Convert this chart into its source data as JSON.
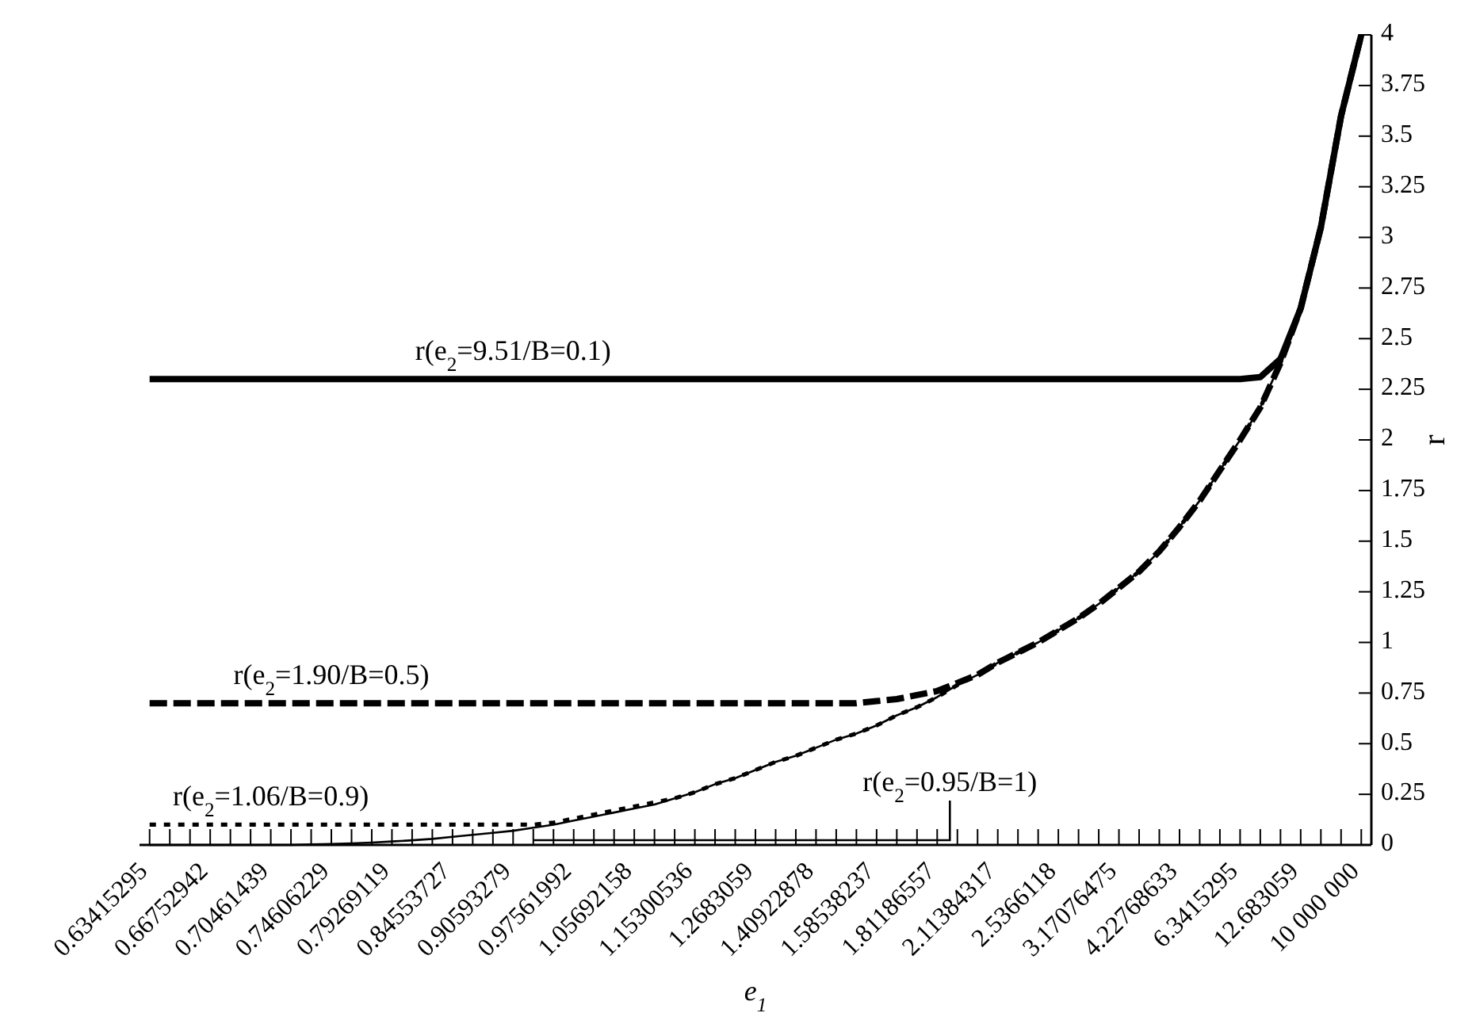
{
  "chart_data": {
    "type": "line",
    "xlabel": "e$_{1}$",
    "ylabel": "r",
    "categories": [
      "0.63415295",
      null,
      null,
      "0.66752942",
      null,
      null,
      "0.70461439",
      null,
      null,
      "0.74606229",
      null,
      null,
      "0.79269119",
      null,
      null,
      "0.84553727",
      null,
      null,
      "0.90593279",
      null,
      null,
      "0.97561992",
      null,
      null,
      "1.05692158",
      null,
      null,
      "1.15300536",
      null,
      null,
      "1.2683059",
      null,
      null,
      "1.40922878",
      null,
      null,
      "1.58538237",
      null,
      null,
      "1.81186557",
      null,
      null,
      "2.11384317",
      null,
      null,
      "2.5366118",
      null,
      null,
      "3.17076475",
      null,
      null,
      "4.22768633",
      null,
      null,
      "6.3415295",
      null,
      null,
      "12.683059",
      null,
      null,
      "10 000 000"
    ],
    "series": [
      {
        "color": "#000000",
        "line_style": "solid",
        "values": [
          2.3,
          2.3,
          2.3,
          2.3,
          2.3,
          2.3,
          2.3,
          2.3,
          2.3,
          2.3,
          2.3,
          2.3,
          2.3,
          2.3,
          2.3,
          2.3,
          2.3,
          2.3,
          2.3,
          2.3,
          2.3,
          2.3,
          2.3,
          2.3,
          2.3,
          2.3,
          2.3,
          2.3,
          2.3,
          2.3,
          2.3,
          2.3,
          2.3,
          2.3,
          2.3,
          2.3,
          2.3,
          2.3,
          2.3,
          2.3,
          2.3,
          2.3,
          2.3,
          2.3,
          2.3,
          2.3,
          2.3,
          2.3,
          2.3,
          2.3,
          2.3,
          2.3,
          2.3,
          2.3,
          2.3,
          2.31,
          2.4,
          2.65,
          3.05,
          3.6,
          4.0
        ]
      },
      {
        "color": "#000000",
        "line_style": "dashed",
        "values": [
          0.7,
          0.7,
          0.7,
          0.7,
          0.7,
          0.7,
          0.7,
          0.7,
          0.7,
          0.7,
          0.7,
          0.7,
          0.7,
          0.7,
          0.7,
          0.7,
          0.7,
          0.7,
          0.7,
          0.7,
          0.7,
          0.7,
          0.7,
          0.7,
          0.7,
          0.7,
          0.7,
          0.7,
          0.7,
          0.7,
          0.7,
          0.7,
          0.7,
          0.7,
          0.7,
          0.7,
          0.71,
          0.72,
          0.74,
          0.76,
          0.8,
          0.84,
          0.9,
          0.95,
          1.0,
          1.06,
          1.12,
          1.19,
          1.27,
          1.35,
          1.45,
          1.57,
          1.7,
          1.85,
          2.0,
          2.16,
          2.38,
          2.65,
          3.05,
          3.6,
          4.0
        ]
      },
      {
        "color": "#000000",
        "line_style": "dotted",
        "values": [
          0.1,
          0.1,
          0.1,
          0.1,
          0.1,
          0.1,
          0.1,
          0.1,
          0.1,
          0.1,
          0.1,
          0.1,
          0.1,
          0.1,
          0.1,
          0.1,
          0.1,
          0.1,
          0.1,
          0.1,
          0.11,
          0.13,
          0.15,
          0.17,
          0.19,
          0.21,
          0.23,
          0.26,
          0.3,
          0.33,
          0.37,
          0.41,
          0.44,
          0.48,
          0.52,
          0.55,
          0.59,
          0.64,
          0.68,
          0.73,
          0.79,
          0.84,
          0.9,
          0.95,
          1.0,
          1.06,
          1.12,
          1.19,
          1.27,
          1.35,
          1.45,
          1.57,
          1.7,
          1.85,
          2.0,
          2.16,
          2.38,
          2.65,
          3.05,
          3.6,
          4.0
        ]
      },
      {
        "color": "#000000",
        "line_style": "solid",
        "values": [
          0,
          0,
          0,
          0,
          0,
          0,
          0,
          0,
          0.003,
          0.005,
          0.008,
          0.012,
          0.017,
          0.023,
          0.03,
          0.04,
          0.05,
          0.06,
          0.07,
          0.085,
          0.1,
          0.12,
          0.14,
          0.16,
          0.18,
          0.2,
          0.23,
          0.26,
          0.3,
          0.33,
          0.37,
          0.41,
          0.44,
          0.48,
          0.52,
          0.55,
          0.59,
          0.64,
          0.68,
          0.73,
          0.79,
          0.84,
          0.9,
          0.95,
          1.0,
          1.06,
          1.12,
          1.19,
          1.27,
          1.35,
          1.45,
          1.57,
          1.7,
          1.85,
          2.0,
          2.16,
          2.38,
          2.65,
          3.05,
          3.6,
          4.0
        ]
      }
    ],
    "ylim": [
      0,
      4
    ],
    "yticks": [
      0,
      0.25,
      0.5,
      0.75,
      1,
      1.25,
      1.5,
      1.75,
      2,
      2.25,
      2.5,
      2.75,
      3,
      3.25,
      3.5,
      3.75,
      4
    ],
    "annotations": [
      {
        "text": "r(e$_{2}$=9.51/B=0.1)",
        "x": "0.90593279",
        "y": 2.3
      },
      {
        "text": "r(e$_{2}$=1.90/B=0.5)",
        "x": "0.74606229",
        "y": 0.7
      },
      {
        "text": "r(e$_{2}$=1.06/B=0.9)",
        "x": "0.70461439",
        "y": 0.1
      },
      "r(e$_{2}$=0.95/B=1)"
    ]
  }
}
